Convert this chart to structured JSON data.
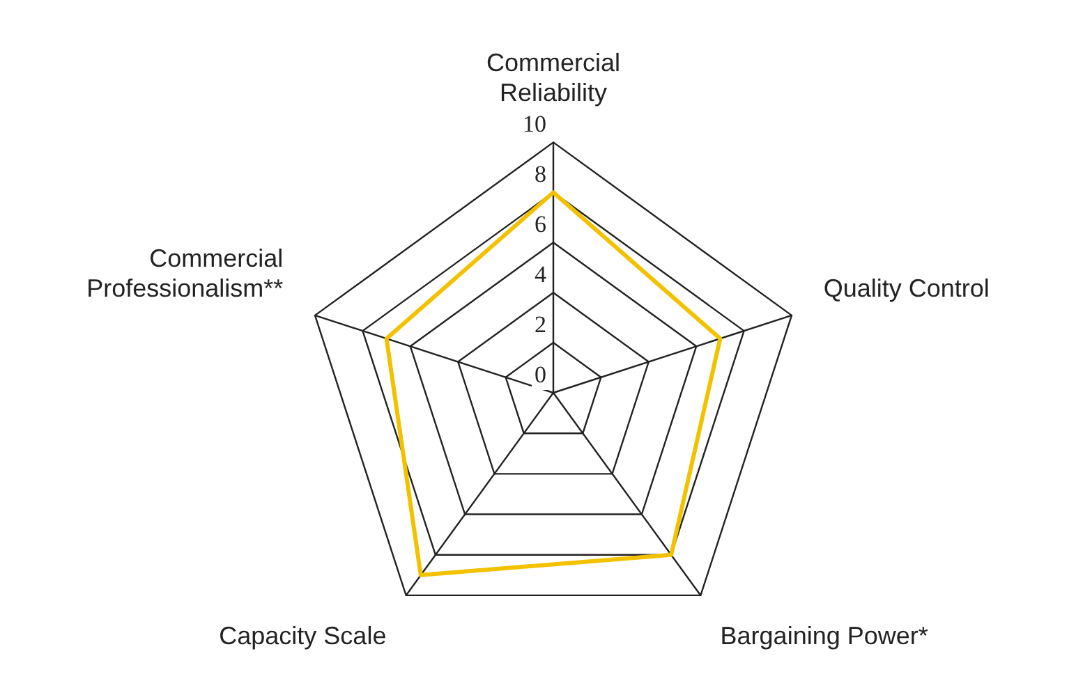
{
  "chart_data": {
    "type": "radar",
    "categories": [
      "Commercial Reliability",
      "Quality Control",
      "Bargaining Power*",
      "Capacity Scale",
      "Commercial Professionalism**"
    ],
    "series": [
      {
        "color": "#f2c200",
        "values": [
          8,
          7,
          8,
          9,
          7
        ]
      }
    ],
    "ylim": [
      0,
      10
    ],
    "yticks": [
      0,
      2,
      4,
      6,
      8,
      10
    ],
    "grid": true,
    "legend": false,
    "marker": "none",
    "line_style": "solid"
  }
}
